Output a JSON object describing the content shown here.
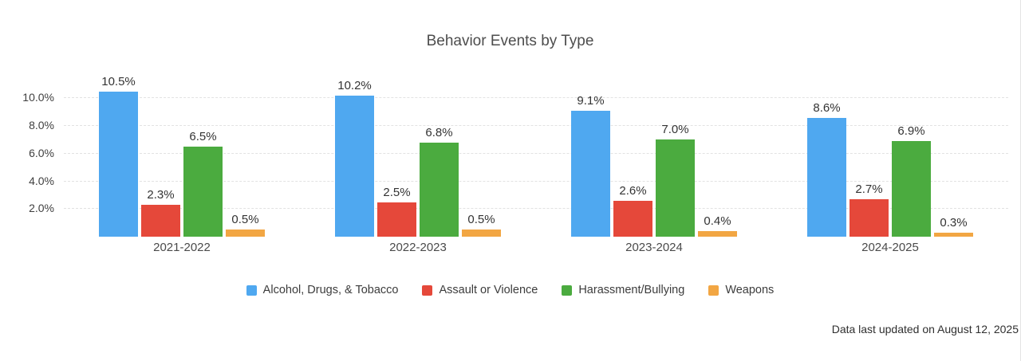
{
  "chart_data": {
    "type": "bar",
    "title": "Behavior Events by Type",
    "categories": [
      "2021-2022",
      "2022-2023",
      "2023-2024",
      "2024-2025"
    ],
    "series": [
      {
        "name": "Alcohol, Drugs, & Tobacco",
        "color": "#4FA8F0",
        "values": [
          10.5,
          10.2,
          9.1,
          8.6
        ]
      },
      {
        "name": "Assault or Violence",
        "color": "#E5483A",
        "values": [
          2.3,
          2.5,
          2.6,
          2.7
        ]
      },
      {
        "name": "Harassment/Bullying",
        "color": "#4BAB3F",
        "values": [
          6.5,
          6.8,
          7.0,
          6.9
        ]
      },
      {
        "name": "Weapons",
        "color": "#F2A643",
        "values": [
          0.5,
          0.5,
          0.4,
          0.3
        ]
      }
    ],
    "xlabel": "",
    "ylabel": "",
    "ylim": [
      0,
      12.2
    ],
    "yticks": [
      2,
      4,
      6,
      8,
      10
    ],
    "tick_format": "percent_1dp",
    "grid": "dashed-horizontal",
    "legend_position": "bottom",
    "value_labels": true
  },
  "footer": {
    "note": "Data last updated on August 12, 2025"
  }
}
